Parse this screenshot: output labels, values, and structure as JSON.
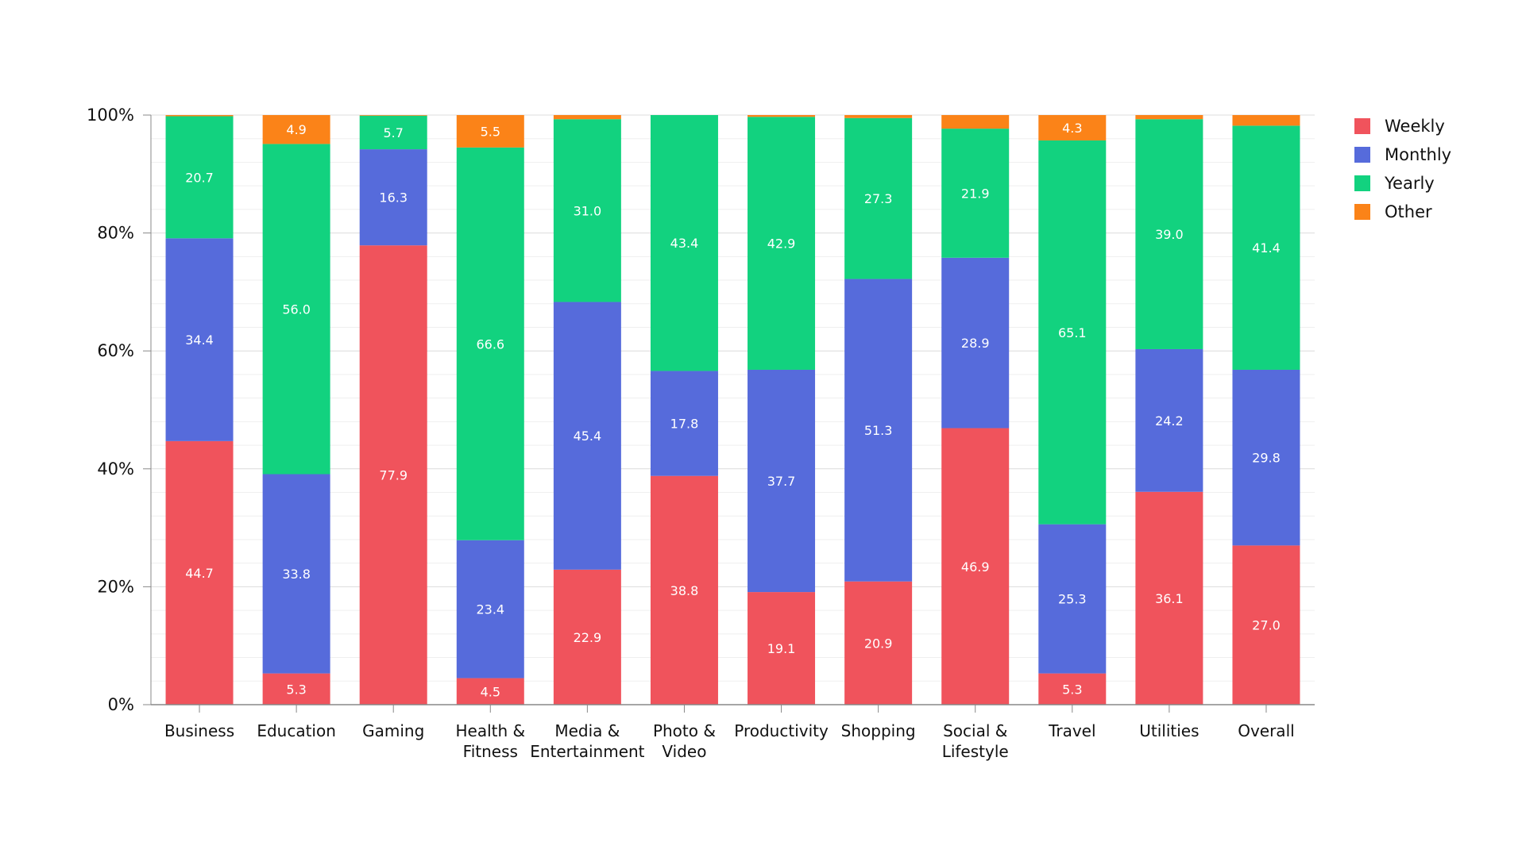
{
  "colors": {
    "weekly": "#f0535c",
    "monthly": "#566bdb",
    "yearly": "#12d27f",
    "other": "#fb8318",
    "grid": "#dcdcdc",
    "axis": "#888888"
  },
  "chart_data": {
    "type": "bar",
    "stacked": true,
    "title": "",
    "xlabel": "",
    "ylabel": "",
    "ylim": [
      0,
      100
    ],
    "grid": true,
    "legend_position": "top-right",
    "y_ticks": [
      "0%",
      "20%",
      "40%",
      "60%",
      "80%",
      "100%"
    ],
    "categories": [
      "Business",
      "Education",
      "Gaming",
      "Health & Fitness",
      "Media & Entertainment",
      "Photo & Video",
      "Productivity",
      "Shopping",
      "Social & Lifestyle",
      "Travel",
      "Utilities",
      "Overall"
    ],
    "series": [
      {
        "name": "Weekly",
        "color_key": "weekly",
        "values": [
          44.7,
          5.3,
          77.9,
          4.5,
          22.9,
          38.8,
          19.1,
          20.9,
          46.9,
          5.3,
          36.1,
          27.0
        ]
      },
      {
        "name": "Monthly",
        "color_key": "monthly",
        "values": [
          34.4,
          33.8,
          16.3,
          23.4,
          45.4,
          17.8,
          37.7,
          51.3,
          28.9,
          25.3,
          24.2,
          29.8
        ]
      },
      {
        "name": "Yearly",
        "color_key": "yearly",
        "values": [
          20.7,
          56.0,
          5.7,
          66.6,
          31.0,
          43.4,
          42.9,
          27.3,
          21.9,
          65.1,
          39.0,
          41.4
        ]
      },
      {
        "name": "Other",
        "color_key": "other",
        "values": [
          0.2,
          4.9,
          0.1,
          5.5,
          0.7,
          0.0,
          0.3,
          0.5,
          2.3,
          4.3,
          0.7,
          1.8
        ]
      }
    ],
    "data_labels": [
      [
        "44.7",
        "34.4",
        "20.7",
        ""
      ],
      [
        "5.3",
        "33.8",
        "56.0",
        "4.9"
      ],
      [
        "77.9",
        "16.3",
        "5.7",
        ""
      ],
      [
        "4.5",
        "23.4",
        "66.6",
        "5.5"
      ],
      [
        "22.9",
        "45.4",
        "31.0",
        ""
      ],
      [
        "38.8",
        "17.8",
        "43.4",
        ""
      ],
      [
        "19.1",
        "37.7",
        "42.9",
        ""
      ],
      [
        "20.9",
        "51.3",
        "27.3",
        ""
      ],
      [
        "46.9",
        "28.9",
        "21.9",
        ""
      ],
      [
        "5.3",
        "25.3",
        "65.1",
        "4.3"
      ],
      [
        "36.1",
        "24.2",
        "39.0",
        ""
      ],
      [
        "27.0",
        "29.8",
        "41.4",
        ""
      ]
    ]
  }
}
